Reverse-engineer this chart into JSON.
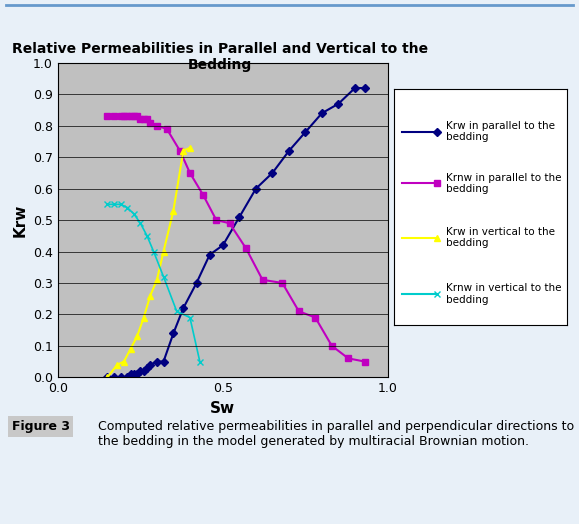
{
  "title": "Relative Permeabilities in Parallel and Vertical to the\nBedding",
  "xlabel": "Sw",
  "ylabel": "Krw",
  "xlim": [
    0,
    1
  ],
  "ylim": [
    0,
    1
  ],
  "xticks": [
    0,
    0.5,
    1
  ],
  "yticks": [
    0,
    0.1,
    0.2,
    0.3,
    0.4,
    0.5,
    0.6,
    0.7,
    0.8,
    0.9,
    1
  ],
  "bg_color": "#c0c0c0",
  "fig_bg": "#e8f0f8",
  "caption_label": "Figure 3",
  "caption_text": "Computed relative permeabilities in parallel and perpendicular directions to the bedding in the model generated by multiracial Brownian motion.",
  "krw_parallel_x": [
    0.15,
    0.17,
    0.19,
    0.21,
    0.22,
    0.23,
    0.24,
    0.25,
    0.26,
    0.27,
    0.28,
    0.3,
    0.32,
    0.35,
    0.38,
    0.42,
    0.46,
    0.5,
    0.55,
    0.6,
    0.65,
    0.7,
    0.75,
    0.8,
    0.85,
    0.9,
    0.93
  ],
  "krw_parallel_y": [
    0.0,
    0.0,
    0.0,
    0.0,
    0.01,
    0.01,
    0.01,
    0.02,
    0.02,
    0.03,
    0.04,
    0.05,
    0.05,
    0.14,
    0.22,
    0.3,
    0.39,
    0.42,
    0.51,
    0.6,
    0.65,
    0.72,
    0.78,
    0.84,
    0.87,
    0.92,
    0.92
  ],
  "krnw_parallel_x": [
    0.15,
    0.17,
    0.19,
    0.2,
    0.21,
    0.22,
    0.23,
    0.24,
    0.25,
    0.26,
    0.27,
    0.28,
    0.3,
    0.33,
    0.37,
    0.4,
    0.44,
    0.48,
    0.52,
    0.57,
    0.62,
    0.68,
    0.73,
    0.78,
    0.83,
    0.88,
    0.93
  ],
  "krnw_parallel_y": [
    0.83,
    0.83,
    0.83,
    0.83,
    0.83,
    0.83,
    0.83,
    0.83,
    0.82,
    0.82,
    0.82,
    0.81,
    0.8,
    0.79,
    0.72,
    0.65,
    0.58,
    0.5,
    0.49,
    0.41,
    0.31,
    0.3,
    0.21,
    0.19,
    0.1,
    0.06,
    0.05
  ],
  "krw_vertical_x": [
    0.15,
    0.18,
    0.2,
    0.22,
    0.24,
    0.26,
    0.28,
    0.3,
    0.32,
    0.35,
    0.38,
    0.4
  ],
  "krw_vertical_y": [
    0.0,
    0.04,
    0.05,
    0.09,
    0.13,
    0.19,
    0.26,
    0.31,
    0.4,
    0.53,
    0.72,
    0.73
  ],
  "krnw_vertical_x": [
    0.15,
    0.17,
    0.19,
    0.21,
    0.23,
    0.25,
    0.27,
    0.29,
    0.32,
    0.36,
    0.4,
    0.43
  ],
  "krnw_vertical_y": [
    0.55,
    0.55,
    0.55,
    0.54,
    0.52,
    0.49,
    0.45,
    0.4,
    0.32,
    0.21,
    0.19,
    0.05
  ],
  "color_krw_parallel": "#000080",
  "color_krnw_parallel": "#C000C0",
  "color_krw_vertical": "#FFFF00",
  "color_krnw_vertical": "#00CCCC",
  "legend_labels": [
    "Krw in parallel to the\nbedding",
    "Krnw in parallel to the\nbedding",
    "Krw in vertical to the\nbedding",
    "Krnw in vertical to the\nbedding"
  ]
}
